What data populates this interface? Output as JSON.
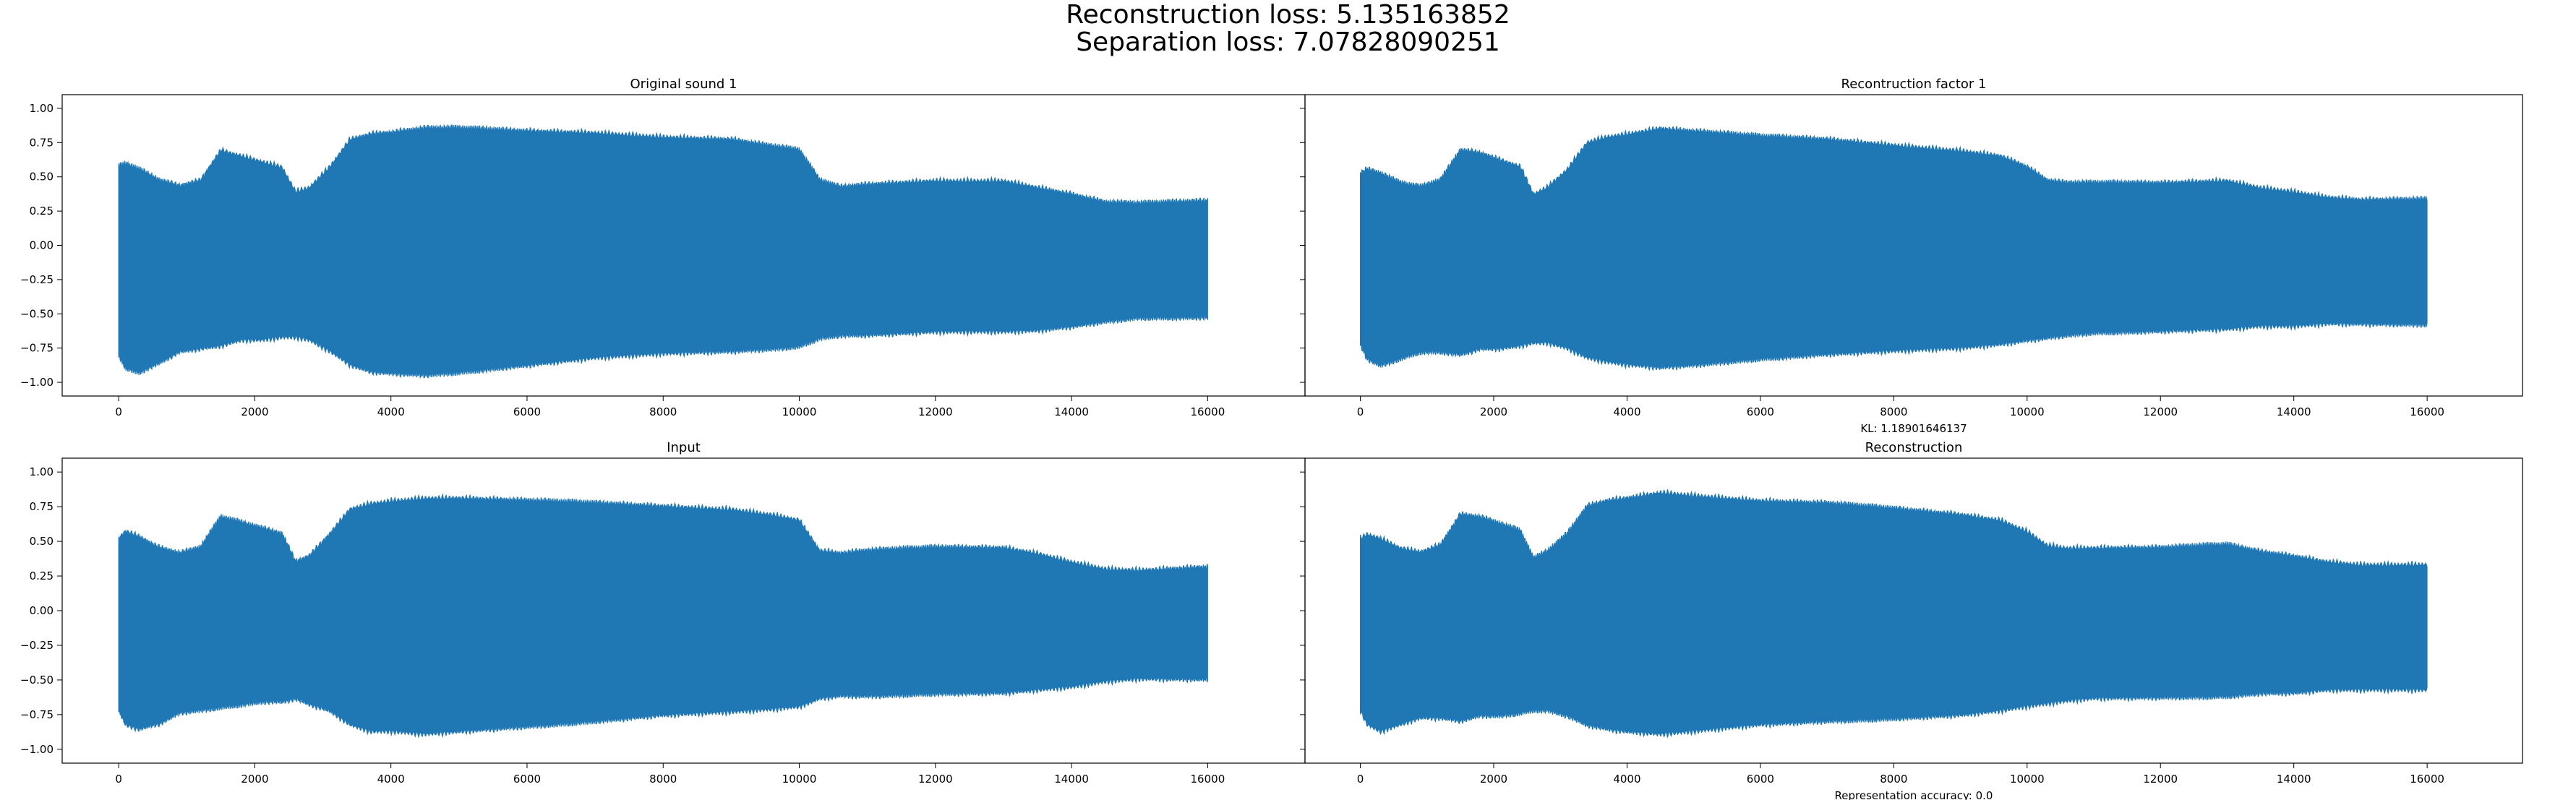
{
  "figure": {
    "suptitle_lines": [
      "Reconstruction loss: 5.135163852",
      "Separation loss: 7.07828090251"
    ],
    "waveform_color": "#1f77b4"
  },
  "chart_data": [
    {
      "type": "line",
      "title": "Original sound 1",
      "xlabel": "",
      "ylabel": "",
      "xlim": [
        -830,
        17430
      ],
      "ylim": [
        -1.1,
        1.1
      ],
      "xticks": [
        0,
        2000,
        4000,
        6000,
        8000,
        10000,
        12000,
        14000,
        16000
      ],
      "yticks": [
        -1.0,
        -0.75,
        -0.5,
        -0.25,
        0.0,
        0.25,
        0.5,
        0.75,
        1.0
      ],
      "ytick_labels": [
        "−1.00",
        "−0.75",
        "−0.50",
        "−0.25",
        "0.00",
        "0.25",
        "0.50",
        "0.75",
        "1.00"
      ],
      "grid": false,
      "series": [
        {
          "envelope_x": [
            0,
            100,
            300,
            600,
            900,
            1200,
            1500,
            1800,
            2100,
            2400,
            2600,
            2800,
            3100,
            3400,
            3700,
            4000,
            4500,
            5000,
            6000,
            7000,
            8000,
            9000,
            9600,
            10000,
            10300,
            10600,
            11000,
            12000,
            13000,
            13500,
            14000,
            14500,
            15000,
            15500,
            16000
          ],
          "upper": [
            0.6,
            0.62,
            0.58,
            0.5,
            0.46,
            0.5,
            0.72,
            0.68,
            0.64,
            0.6,
            0.42,
            0.45,
            0.6,
            0.8,
            0.84,
            0.85,
            0.88,
            0.88,
            0.86,
            0.85,
            0.82,
            0.8,
            0.75,
            0.72,
            0.5,
            0.45,
            0.47,
            0.5,
            0.5,
            0.45,
            0.4,
            0.34,
            0.33,
            0.34,
            0.35
          ],
          "lower": [
            -0.82,
            -0.92,
            -0.95,
            -0.88,
            -0.8,
            -0.78,
            -0.76,
            -0.72,
            -0.72,
            -0.7,
            -0.7,
            -0.72,
            -0.8,
            -0.9,
            -0.95,
            -0.96,
            -0.97,
            -0.95,
            -0.9,
            -0.85,
            -0.82,
            -0.8,
            -0.78,
            -0.76,
            -0.7,
            -0.68,
            -0.68,
            -0.66,
            -0.66,
            -0.65,
            -0.62,
            -0.58,
            -0.55,
            -0.55,
            -0.55
          ]
        }
      ]
    },
    {
      "type": "line",
      "title": "Recontruction factor 1",
      "xlabel": "KL: 1.18901646137",
      "ylabel": "",
      "xlim": [
        -830,
        17430
      ],
      "ylim": [
        -1.1,
        1.1
      ],
      "xticks": [
        0,
        2000,
        4000,
        6000,
        8000,
        10000,
        12000,
        14000,
        16000
      ],
      "yticks": [
        -1.0,
        -0.75,
        -0.5,
        -0.25,
        0.0,
        0.25,
        0.5,
        0.75,
        1.0
      ],
      "grid": false,
      "series": [
        {
          "envelope_x": [
            0,
            100,
            300,
            600,
            900,
            1200,
            1500,
            1800,
            2100,
            2400,
            2600,
            2800,
            3100,
            3400,
            3700,
            4000,
            4500,
            5000,
            6000,
            7000,
            8000,
            9000,
            9600,
            10000,
            10300,
            10600,
            11000,
            12000,
            13000,
            13500,
            14000,
            14500,
            15000,
            15500,
            16000
          ],
          "upper": [
            0.55,
            0.58,
            0.55,
            0.48,
            0.45,
            0.5,
            0.72,
            0.7,
            0.65,
            0.6,
            0.4,
            0.45,
            0.58,
            0.78,
            0.82,
            0.84,
            0.88,
            0.86,
            0.82,
            0.8,
            0.76,
            0.72,
            0.68,
            0.6,
            0.5,
            0.48,
            0.48,
            0.48,
            0.5,
            0.45,
            0.42,
            0.38,
            0.36,
            0.36,
            0.36
          ],
          "lower": [
            -0.75,
            -0.85,
            -0.9,
            -0.85,
            -0.8,
            -0.8,
            -0.82,
            -0.78,
            -0.78,
            -0.76,
            -0.74,
            -0.74,
            -0.78,
            -0.85,
            -0.88,
            -0.9,
            -0.92,
            -0.9,
            -0.85,
            -0.82,
            -0.8,
            -0.78,
            -0.75,
            -0.72,
            -0.7,
            -0.68,
            -0.66,
            -0.65,
            -0.64,
            -0.62,
            -0.62,
            -0.6,
            -0.6,
            -0.6,
            -0.6
          ]
        }
      ]
    },
    {
      "type": "line",
      "title": "Input",
      "xlabel": "",
      "ylabel": "",
      "xlim": [
        -830,
        17430
      ],
      "ylim": [
        -1.1,
        1.1
      ],
      "xticks": [
        0,
        2000,
        4000,
        6000,
        8000,
        10000,
        12000,
        14000,
        16000
      ],
      "yticks": [
        -1.0,
        -0.75,
        -0.5,
        -0.25,
        0.0,
        0.25,
        0.5,
        0.75,
        1.0
      ],
      "ytick_labels": [
        "−1.00",
        "−0.75",
        "−0.50",
        "−0.25",
        "0.00",
        "0.25",
        "0.50",
        "0.75",
        "1.00"
      ],
      "grid": false,
      "series": [
        {
          "envelope_x": [
            0,
            100,
            300,
            600,
            900,
            1200,
            1500,
            1800,
            2100,
            2400,
            2600,
            2800,
            3100,
            3400,
            3700,
            4000,
            4500,
            5000,
            6000,
            7000,
            8000,
            9000,
            9600,
            10000,
            10300,
            10600,
            11000,
            12000,
            13000,
            13500,
            14000,
            14500,
            15000,
            15500,
            16000
          ],
          "upper": [
            0.55,
            0.6,
            0.56,
            0.48,
            0.44,
            0.48,
            0.7,
            0.66,
            0.62,
            0.58,
            0.38,
            0.42,
            0.58,
            0.76,
            0.8,
            0.82,
            0.84,
            0.84,
            0.82,
            0.8,
            0.78,
            0.76,
            0.72,
            0.68,
            0.46,
            0.44,
            0.46,
            0.48,
            0.48,
            0.44,
            0.38,
            0.33,
            0.32,
            0.33,
            0.34
          ],
          "lower": [
            -0.75,
            -0.85,
            -0.88,
            -0.84,
            -0.76,
            -0.74,
            -0.72,
            -0.7,
            -0.68,
            -0.68,
            -0.66,
            -0.7,
            -0.75,
            -0.85,
            -0.9,
            -0.9,
            -0.92,
            -0.9,
            -0.86,
            -0.82,
            -0.78,
            -0.76,
            -0.74,
            -0.72,
            -0.66,
            -0.64,
            -0.64,
            -0.62,
            -0.62,
            -0.6,
            -0.58,
            -0.54,
            -0.52,
            -0.52,
            -0.52
          ]
        }
      ]
    },
    {
      "type": "line",
      "title": "Reconstruction",
      "xlabel": "Representation accuracy: 0.0",
      "ylabel": "",
      "xlim": [
        -830,
        17430
      ],
      "ylim": [
        -1.1,
        1.1
      ],
      "xticks": [
        0,
        2000,
        4000,
        6000,
        8000,
        10000,
        12000,
        14000,
        16000
      ],
      "yticks": [
        -1.0,
        -0.75,
        -0.5,
        -0.25,
        0.0,
        0.25,
        0.5,
        0.75,
        1.0
      ],
      "grid": false,
      "series": [
        {
          "envelope_x": [
            0,
            100,
            300,
            600,
            900,
            1200,
            1500,
            1800,
            2100,
            2400,
            2600,
            2800,
            3100,
            3400,
            3700,
            4000,
            4500,
            5000,
            6000,
            7000,
            8000,
            9000,
            9600,
            10000,
            10300,
            10600,
            11000,
            12000,
            13000,
            13500,
            14000,
            14500,
            15000,
            15500,
            16000
          ],
          "upper": [
            0.55,
            0.58,
            0.55,
            0.48,
            0.45,
            0.5,
            0.72,
            0.7,
            0.65,
            0.6,
            0.4,
            0.45,
            0.58,
            0.78,
            0.82,
            0.84,
            0.88,
            0.86,
            0.82,
            0.8,
            0.76,
            0.72,
            0.68,
            0.6,
            0.5,
            0.48,
            0.48,
            0.48,
            0.5,
            0.45,
            0.42,
            0.38,
            0.36,
            0.36,
            0.36
          ],
          "lower": [
            -0.75,
            -0.85,
            -0.9,
            -0.85,
            -0.8,
            -0.8,
            -0.82,
            -0.78,
            -0.78,
            -0.76,
            -0.74,
            -0.74,
            -0.78,
            -0.85,
            -0.88,
            -0.9,
            -0.92,
            -0.9,
            -0.85,
            -0.82,
            -0.8,
            -0.78,
            -0.75,
            -0.72,
            -0.7,
            -0.68,
            -0.66,
            -0.65,
            -0.64,
            -0.62,
            -0.62,
            -0.6,
            -0.6,
            -0.6,
            -0.6
          ]
        }
      ]
    }
  ]
}
